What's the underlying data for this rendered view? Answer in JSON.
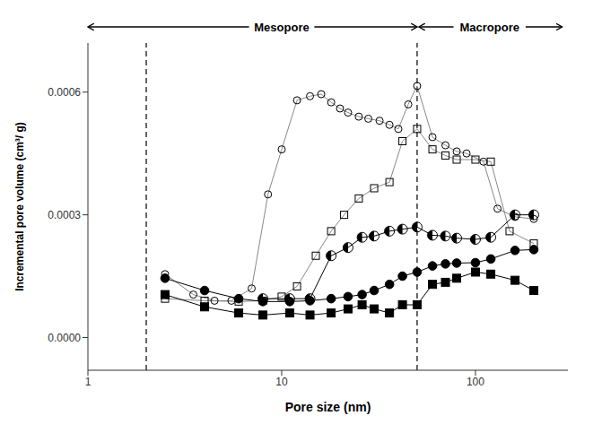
{
  "chart_data": {
    "type": "line",
    "xlabel": "Pore size (nm)",
    "ylabel": "Incremental pore volume (cm³/ g)",
    "log": "x",
    "grid": false,
    "xlim": [
      1,
      300
    ],
    "xticks": [
      1,
      10,
      100
    ],
    "ylim": [
      -8e-05,
      0.00072
    ],
    "yticks": [
      {
        "value": 0.0,
        "label": "0.0000"
      },
      {
        "value": 0.0003,
        "label": "0.0003"
      },
      {
        "value": 0.0006,
        "label": "0.0006"
      }
    ],
    "vlines": [
      2.0,
      50.0
    ],
    "annotations": [
      {
        "text": "Mesopore",
        "x": 10,
        "span": [
          1.0,
          50.0
        ]
      },
      {
        "text": "Macropore",
        "x": 118.3216,
        "span": [
          51.0,
          280.0
        ]
      }
    ],
    "series": [
      {
        "marker": "circle-open",
        "color": "#888888",
        "x": [
          2.5,
          3.5,
          4.5,
          5.5,
          7.0,
          8.5,
          10.0,
          12.0,
          14.0,
          16.0,
          18.0,
          20.0,
          22.0,
          25.0,
          28.0,
          32.0,
          36.0,
          40.0,
          45.0,
          50.0,
          60.0,
          70.0,
          80.0,
          90.0,
          110.0,
          130.0,
          160.0,
          200.0
        ],
        "values": [
          0.000155,
          0.000105,
          9e-05,
          9e-05,
          0.00012,
          0.00035,
          0.00046,
          0.00058,
          0.00059,
          0.000595,
          0.000575,
          0.00056,
          0.00055,
          0.00054,
          0.000535,
          0.00053,
          0.00052,
          0.00051,
          0.00057,
          0.000615,
          0.00049,
          0.00047,
          0.000455,
          0.00045,
          0.00043,
          0.000315,
          0.000295,
          0.00029
        ]
      },
      {
        "marker": "square-open",
        "color": "#888888",
        "x": [
          2.5,
          4.0,
          6.0,
          8.0,
          10.0,
          12.0,
          15.0,
          18.0,
          21.0,
          25.0,
          30.0,
          36.0,
          42.0,
          50.0,
          60.0,
          70.0,
          80.0,
          100.0,
          120.0,
          150.0,
          200.0
        ],
        "values": [
          9.5e-05,
          9e-05,
          8.8e-05,
          9e-05,
          0.0001,
          0.000125,
          0.0002,
          0.00026,
          0.0003,
          0.00034,
          0.000365,
          0.00038,
          0.00048,
          0.00051,
          0.00046,
          0.000445,
          0.000435,
          0.000435,
          0.00043,
          0.00026,
          0.00023
        ]
      },
      {
        "marker": "circle-half",
        "color": "#000000",
        "x": [
          8.0,
          11.0,
          14.0,
          18.0,
          22.0,
          26.0,
          30.0,
          36.0,
          42.0,
          50.0,
          60.0,
          70.0,
          80.0,
          100.0,
          120.0,
          160.0,
          200.0
        ],
        "values": [
          9.5e-05,
          9.5e-05,
          9.5e-05,
          0.0002,
          0.00022,
          0.000245,
          0.000248,
          0.00026,
          0.000265,
          0.00027,
          0.00025,
          0.000248,
          0.000243,
          0.00024,
          0.000245,
          0.0003,
          0.0003
        ]
      },
      {
        "marker": "circle",
        "color": "#000000",
        "x": [
          2.5,
          4.0,
          6.0,
          8.0,
          11.0,
          14.0,
          18.0,
          22.0,
          26.0,
          30.0,
          36.0,
          42.0,
          50.0,
          60.0,
          70.0,
          80.0,
          100.0,
          120.0,
          160.0,
          200.0
        ],
        "values": [
          0.000145,
          0.000115,
          9.5e-05,
          8.8e-05,
          8.8e-05,
          9e-05,
          9.5e-05,
          0.0001,
          0.000105,
          0.000115,
          0.00013,
          0.00015,
          0.00016,
          0.000175,
          0.00018,
          0.000182,
          0.000183,
          0.000192,
          0.000213,
          0.000215
        ]
      },
      {
        "marker": "square",
        "color": "#000000",
        "x": [
          2.5,
          4.0,
          6.0,
          8.0,
          11.0,
          14.0,
          18.0,
          22.0,
          26.0,
          30.0,
          36.0,
          42.0,
          50.0,
          60.0,
          70.0,
          80.0,
          100.0,
          120.0,
          160.0,
          200.0
        ],
        "values": [
          0.000105,
          7.5e-05,
          6e-05,
          5.5e-05,
          6e-05,
          5.5e-05,
          6e-05,
          7e-05,
          8e-05,
          7e-05,
          6e-05,
          8e-05,
          8e-05,
          0.00013,
          0.000135,
          0.000145,
          0.00016,
          0.000155,
          0.00014,
          0.000115
        ]
      }
    ]
  }
}
